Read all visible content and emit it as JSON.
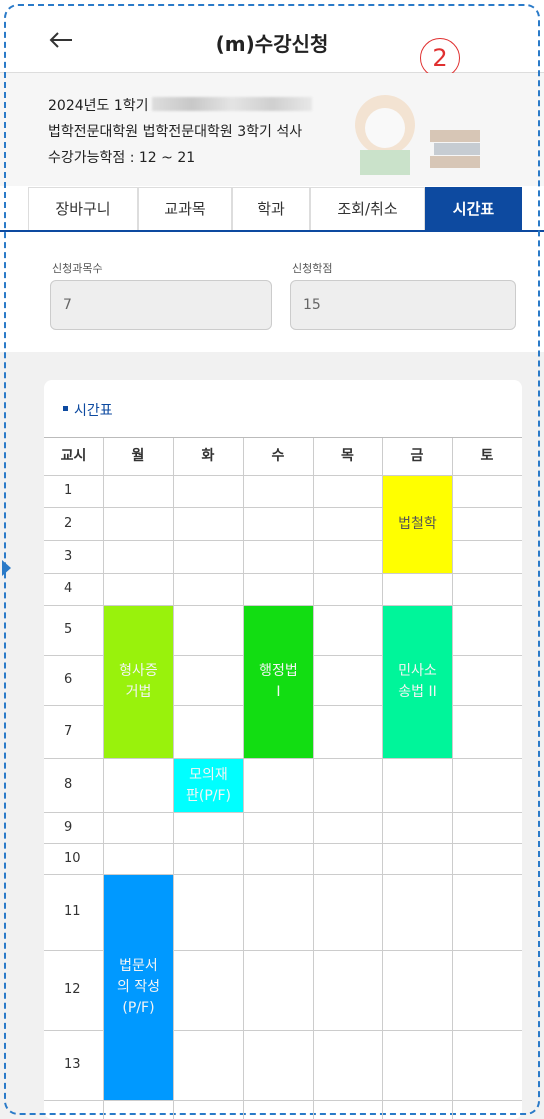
{
  "header": {
    "title": "(m)수강신청",
    "badge": "2"
  },
  "info": {
    "term": "2024년도 1학기",
    "program": "법학전문대학원 법학전문대학원 3학기 석사",
    "credits": "수강가능학점 : 12 ~ 21"
  },
  "tabs": [
    "장바구니",
    "교과목",
    "학과",
    "조회/취소",
    "시간표"
  ],
  "active_tab": 4,
  "summary": {
    "fields": [
      {
        "label": "신청과목수",
        "value": "7"
      },
      {
        "label": "신청학점",
        "value": "15"
      }
    ]
  },
  "timetable": {
    "title": "시간표",
    "columns": [
      "교시",
      "월",
      "화",
      "수",
      "목",
      "금",
      "토"
    ],
    "periods": [
      "1",
      "2",
      "3",
      "4",
      "5",
      "6",
      "7",
      "8",
      "9",
      "10",
      "11",
      "12",
      "13"
    ],
    "courses": [
      {
        "lines": [
          "법철학"
        ],
        "day": 5,
        "start": 1,
        "end": 3,
        "color": "#ffff00"
      },
      {
        "lines": [
          "형사증",
          "거법"
        ],
        "day": 1,
        "start": 5,
        "end": 7,
        "color": "#99f20c"
      },
      {
        "lines": [
          "행정법",
          "I"
        ],
        "day": 3,
        "start": 5,
        "end": 7,
        "color": "#12dd12"
      },
      {
        "lines": [
          "민사소",
          "송법 II"
        ],
        "day": 5,
        "start": 5,
        "end": 7,
        "color": "#00f59a"
      },
      {
        "lines": [
          "모의재",
          "판(P/F)"
        ],
        "day": 2,
        "start": 8,
        "end": 8,
        "color": "#00ffff"
      },
      {
        "lines": [
          "법문서",
          "의 작성",
          "(P/F)"
        ],
        "day": 1,
        "start": 11,
        "end": 13,
        "color": "#0099ff"
      }
    ]
  }
}
